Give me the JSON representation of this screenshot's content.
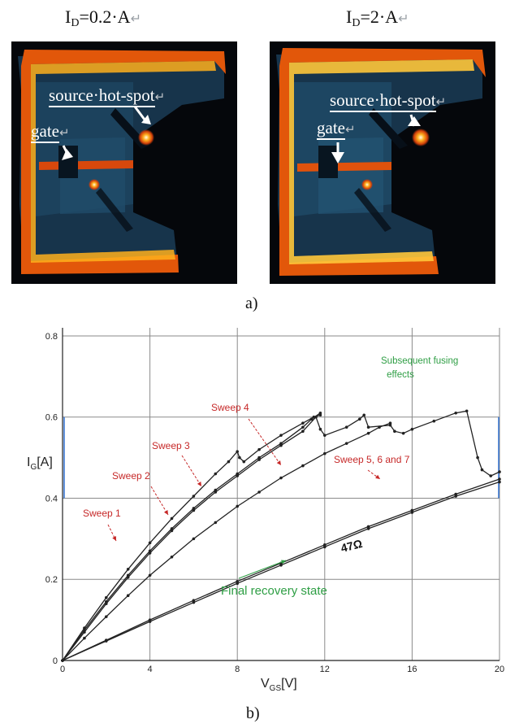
{
  "panel_a": {
    "title_left": {
      "main": "I",
      "sub": "D",
      "rest": "=0.2·A"
    },
    "title_right": {
      "main": "I",
      "sub": "D",
      "rest": "=2·A"
    },
    "return_mark": "↵",
    "labels": {
      "source_hotspot": "source·hot-spot",
      "gate": "gate"
    },
    "caption": "a)"
  },
  "panel_b": {
    "caption": "b)"
  },
  "chart_data": {
    "type": "line",
    "xlabel": {
      "main": "V",
      "sub": "GS",
      "rest": "[V]"
    },
    "ylabel": {
      "main": "I",
      "sub": "G",
      "rest": "[A]"
    },
    "xlim": [
      0,
      20
    ],
    "ylim": [
      0,
      0.82
    ],
    "x_ticks": [
      "0",
      "4",
      "8",
      "12",
      "16",
      "20"
    ],
    "y_ticks": [
      "0",
      "0.2",
      "0.4",
      "0.6",
      "0.8"
    ],
    "grid": true,
    "series": [
      {
        "name": "Sweep 1",
        "color": "#222222",
        "x": [
          0,
          1,
          2,
          3,
          4,
          5,
          6,
          7,
          7.6,
          8.0,
          8.1,
          8.3,
          9,
          10,
          11,
          11.5,
          11.8
        ],
        "y": [
          0,
          0.08,
          0.155,
          0.225,
          0.29,
          0.35,
          0.405,
          0.46,
          0.49,
          0.515,
          0.5,
          0.49,
          0.52,
          0.555,
          0.585,
          0.6,
          0.605
        ]
      },
      {
        "name": "Sweep 2",
        "color": "#222222",
        "x": [
          0,
          1,
          2,
          3,
          4,
          5,
          6,
          7,
          8,
          9,
          10,
          11,
          11.4,
          11.8
        ],
        "y": [
          0,
          0.075,
          0.145,
          0.21,
          0.27,
          0.325,
          0.375,
          0.42,
          0.46,
          0.5,
          0.535,
          0.575,
          0.595,
          0.61
        ]
      },
      {
        "name": "Sweep 3",
        "color": "#222222",
        "x": [
          0,
          1,
          2,
          3,
          4,
          5,
          6,
          7,
          8,
          9,
          10,
          11,
          11.6,
          11.8,
          12,
          13,
          13.6,
          13.8,
          14,
          15,
          15.2,
          15.6,
          16,
          17,
          18,
          18.5,
          19,
          19.2,
          19.6,
          20
        ],
        "y": [
          0,
          0.07,
          0.14,
          0.205,
          0.265,
          0.32,
          0.37,
          0.415,
          0.455,
          0.495,
          0.53,
          0.565,
          0.6,
          0.57,
          0.555,
          0.575,
          0.595,
          0.605,
          0.575,
          0.58,
          0.565,
          0.56,
          0.57,
          0.59,
          0.61,
          0.615,
          0.5,
          0.47,
          0.455,
          0.465
        ]
      },
      {
        "name": "Sweep 4",
        "color": "#222222",
        "x": [
          0,
          1,
          2,
          3,
          4,
          5,
          6,
          7,
          8,
          9,
          10,
          11,
          12,
          13,
          14,
          14.5,
          15
        ],
        "y": [
          0,
          0.055,
          0.108,
          0.16,
          0.21,
          0.255,
          0.3,
          0.34,
          0.38,
          0.415,
          0.45,
          0.48,
          0.51,
          0.535,
          0.56,
          0.575,
          0.585
        ]
      },
      {
        "name": "Sweep 5, 6 and 7",
        "color": "#222222",
        "x": [
          0,
          2,
          4,
          6,
          8,
          10,
          12,
          14,
          16,
          18,
          20
        ],
        "y": [
          0,
          0.05,
          0.1,
          0.148,
          0.195,
          0.24,
          0.285,
          0.33,
          0.37,
          0.41,
          0.447
        ]
      },
      {
        "name": "Final recovery state",
        "color": "#222222",
        "x": [
          0,
          2,
          4,
          6,
          8,
          10,
          12,
          14,
          16,
          18,
          20
        ],
        "y": [
          0,
          0.048,
          0.096,
          0.143,
          0.19,
          0.235,
          0.28,
          0.325,
          0.365,
          0.405,
          0.44
        ]
      }
    ],
    "annotations": [
      {
        "text": "Sweep 1",
        "color": "#c62828"
      },
      {
        "text": "Sweep 2",
        "color": "#c62828"
      },
      {
        "text": "Sweep 3",
        "color": "#c62828"
      },
      {
        "text": "Sweep 4",
        "color": "#c62828"
      },
      {
        "text": "Sweep 5, 6 and 7",
        "color": "#c62828"
      },
      {
        "text": "Subsequent fusing",
        "color": "#2e9e44"
      },
      {
        "text": "effects",
        "color": "#2e9e44"
      },
      {
        "text": "Final recovery state",
        "color": "#2e9e44"
      },
      {
        "text": "47Ω",
        "color": "#111111"
      }
    ]
  }
}
